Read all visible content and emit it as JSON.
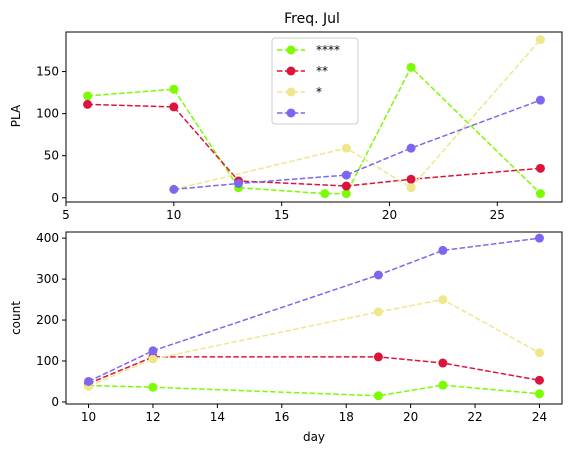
{
  "chart_data": [
    {
      "type": "line",
      "title": "Freq. Jul",
      "xlabel": "",
      "ylabel": "PLA",
      "xlim": [
        5,
        28
      ],
      "ylim": [
        -5,
        197
      ],
      "xticks": [
        5,
        10,
        15,
        20,
        25
      ],
      "yticks": [
        0,
        50,
        100,
        150
      ],
      "grid": false,
      "legend_position": "top-center",
      "series": [
        {
          "name": "****",
          "color": "#7CFC00",
          "x": [
            6,
            10,
            13,
            17,
            18,
            21,
            27
          ],
          "y": [
            121,
            129,
            12,
            5,
            5,
            155,
            5
          ]
        },
        {
          "name": "**",
          "color": "#DC143C",
          "x": [
            6,
            10,
            13,
            18,
            21,
            27
          ],
          "y": [
            111,
            108,
            20,
            14,
            22,
            35
          ]
        },
        {
          "name": "*",
          "color": "#F0E68C",
          "x": [
            10,
            18,
            21,
            27
          ],
          "y": [
            10,
            59,
            12,
            188
          ]
        },
        {
          "name": "",
          "color": "#7B68EE",
          "x": [
            10,
            13,
            18,
            21,
            27
          ],
          "y": [
            10,
            17,
            27,
            59,
            116
          ]
        }
      ]
    },
    {
      "type": "line",
      "title": "",
      "xlabel": "day",
      "ylabel": "count",
      "xlim": [
        9.3,
        24.7
      ],
      "ylim": [
        -5,
        415
      ],
      "xticks": [
        10,
        12,
        14,
        16,
        18,
        20,
        22,
        24
      ],
      "yticks": [
        0,
        100,
        200,
        300,
        400
      ],
      "grid": false,
      "series": [
        {
          "color": "#7CFC00",
          "x": [
            10,
            12,
            19,
            21,
            24
          ],
          "y": [
            40,
            36,
            15,
            41,
            20
          ]
        },
        {
          "color": "#DC143C",
          "x": [
            10,
            12,
            19,
            21,
            24
          ],
          "y": [
            45,
            110,
            110,
            95,
            53
          ]
        },
        {
          "color": "#F0E68C",
          "x": [
            10,
            12,
            19,
            21,
            24
          ],
          "y": [
            38,
            105,
            220,
            250,
            120
          ]
        },
        {
          "color": "#7B68EE",
          "x": [
            10,
            12,
            19,
            21,
            24
          ],
          "y": [
            50,
            125,
            310,
            370,
            400
          ]
        }
      ]
    }
  ]
}
